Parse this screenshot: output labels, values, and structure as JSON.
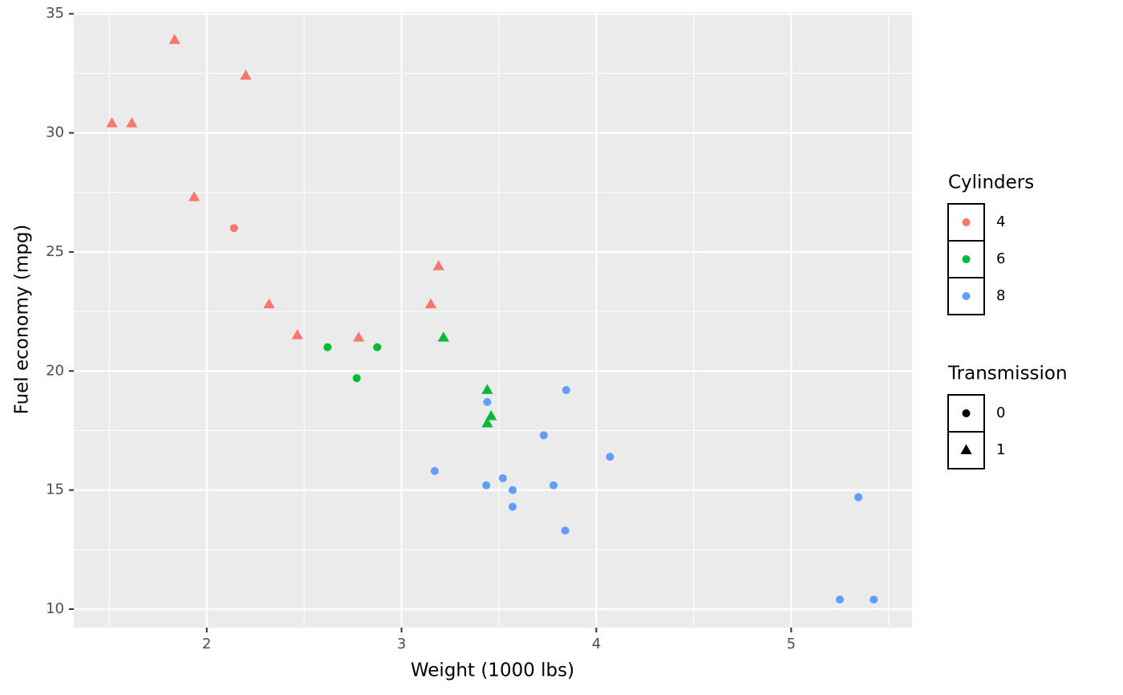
{
  "chart_data": {
    "type": "scatter",
    "x_label": "Weight (1000 lbs)",
    "y_label": "Fuel economy (mpg)",
    "xlim": [
      1.31745,
      5.62055
    ],
    "ylim": [
      9.225,
      35.075
    ],
    "xticks": [
      2,
      3,
      4,
      5
    ],
    "yticks": [
      10,
      15,
      20,
      25,
      30,
      35
    ],
    "x_minor": [
      1.5,
      2.5,
      3.5,
      4.5,
      5.5
    ],
    "y_minor": [
      12.5,
      17.5,
      22.5,
      27.5,
      32.5
    ],
    "grid": true,
    "color_legend_title": "Cylinders",
    "shape_legend_title": "Transmission",
    "shapes": [
      {
        "name": "0",
        "marker": "circle"
      },
      {
        "name": "1",
        "marker": "triangle"
      }
    ],
    "series": [
      {
        "name": "4",
        "color": "#F8766D",
        "x": [
          2.32,
          3.19,
          3.15,
          2.2,
          1.615,
          1.835,
          2.465,
          1.935,
          2.14,
          1.513,
          2.78
        ],
        "values": [
          22.8,
          24.4,
          22.8,
          32.4,
          30.4,
          33.9,
          21.5,
          27.3,
          26.0,
          30.4,
          21.4
        ],
        "shape": [
          "1",
          "1",
          "1",
          "1",
          "1",
          "1",
          "1",
          "1",
          "0",
          "1",
          "1"
        ]
      },
      {
        "name": "6",
        "color": "#00BA38",
        "x": [
          2.62,
          2.875,
          3.215,
          3.46,
          3.44,
          3.44,
          2.77
        ],
        "values": [
          21.0,
          21.0,
          21.4,
          18.1,
          19.2,
          17.8,
          19.7
        ],
        "shape": [
          "0",
          "0",
          "1",
          "1",
          "1",
          "1",
          "0"
        ]
      },
      {
        "name": "8",
        "color": "#619CFF",
        "x": [
          3.44,
          3.57,
          4.07,
          3.73,
          3.78,
          5.25,
          5.424,
          5.345,
          3.52,
          3.435,
          3.84,
          3.845,
          3.17,
          3.57
        ],
        "values": [
          18.7,
          14.3,
          16.4,
          17.3,
          15.2,
          10.4,
          10.4,
          14.7,
          15.5,
          15.2,
          13.3,
          19.2,
          15.8,
          15.0
        ],
        "shape": [
          "0",
          "0",
          "0",
          "0",
          "0",
          "0",
          "0",
          "0",
          "0",
          "0",
          "0",
          "0",
          "0",
          "0"
        ]
      }
    ]
  }
}
